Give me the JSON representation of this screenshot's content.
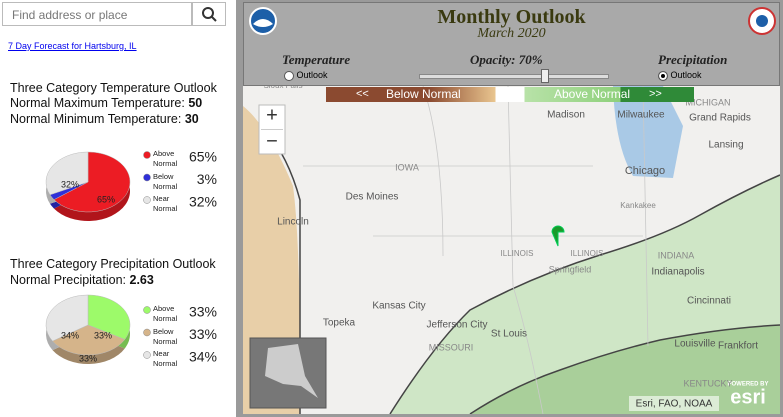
{
  "search": {
    "placeholder": "Find address or place"
  },
  "forecast_link": "7 Day Forecast for Hartsburg, IL",
  "temperature_outlook": {
    "title": "Three Category Temperature Outlook",
    "max_label": "Normal Maximum Temperature:",
    "max_value": "50",
    "min_label": "Normal Minimum Temperature:",
    "min_value": "30",
    "pie": {
      "categories": [
        "Above Normal",
        "Below Normal",
        "Near Normal"
      ],
      "values": [
        65,
        3,
        32
      ],
      "value_labels": [
        "65%",
        "3%",
        "32%"
      ],
      "colors": [
        "#ec1c24",
        "#3030d8",
        "#e6e6e6"
      ]
    }
  },
  "precipitation_outlook": {
    "title": "Three Category Precipitation Outlook",
    "normal_label": "Normal Precipitation:",
    "normal_value": "2.63",
    "pie": {
      "categories": [
        "Above Normal",
        "Below Normal",
        "Near Normal"
      ],
      "values": [
        33,
        33,
        34
      ],
      "value_labels": [
        "33%",
        "33%",
        "34%"
      ],
      "colors": [
        "#9dfa6a",
        "#d5b48a",
        "#e6e6e6"
      ]
    }
  },
  "map_header": {
    "title": "Monthly Outlook",
    "subtitle": "March 2020",
    "temperature": "Temperature",
    "temperature_option": "Outlook",
    "opacity": "Opacity: 70%",
    "precipitation": "Precipitation",
    "precipitation_option": "Outlook"
  },
  "legend_bar": {
    "left_arrow": "<<",
    "below": "Below Normal",
    "above": "Above Normal",
    "right_arrow": ">>"
  },
  "zoom": {
    "in": "+",
    "out": "−"
  },
  "map_labels": [
    "Sioux Falls",
    "Madison",
    "Milwaukee",
    "MICHIGAN",
    "Grand Rapids",
    "Lansing",
    "IOWA",
    "Des Moines",
    "Chicago",
    "Kankakee",
    "Lincoln",
    "ILLINOIS",
    "ILLINOIS",
    "Springfield",
    "INDIANA",
    "Indianapolis",
    "Kansas City",
    "Topeka",
    "Jefferson City",
    "St Louis",
    "MISSOURI",
    "Cincinnati",
    "Louisville",
    "Frankfort",
    "KENTUCKY"
  ],
  "attribution": "Esri, FAO, NOAA",
  "powered_by": "POWERED BY",
  "esri": "esri"
}
